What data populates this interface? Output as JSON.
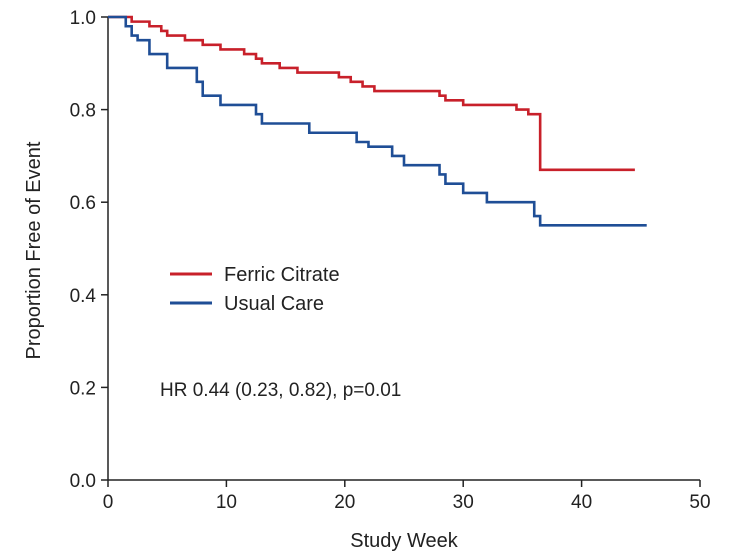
{
  "chart_data": {
    "type": "line",
    "step": true,
    "title": "",
    "xlabel": "Study Week",
    "ylabel": "Proportion Free of Event",
    "xlim": [
      0,
      50
    ],
    "ylim": [
      0.0,
      1.0
    ],
    "xticks": [
      0,
      10,
      20,
      30,
      40,
      50
    ],
    "yticks": [
      "0.0",
      "0.2",
      "0.4",
      "0.6",
      "0.8",
      "1.0"
    ],
    "grid": false,
    "legend_position": "center-left",
    "annotation": "HR 0.44 (0.23, 0.82), p=0.01",
    "series": [
      {
        "name": "Ferric Citrate",
        "color": "#c8202a",
        "points": [
          [
            0,
            1.0
          ],
          [
            2,
            0.99
          ],
          [
            3.5,
            0.98
          ],
          [
            4.5,
            0.97
          ],
          [
            5,
            0.96
          ],
          [
            6.5,
            0.95
          ],
          [
            8,
            0.94
          ],
          [
            9.5,
            0.93
          ],
          [
            11.5,
            0.92
          ],
          [
            12.5,
            0.91
          ],
          [
            13,
            0.9
          ],
          [
            14.5,
            0.89
          ],
          [
            16,
            0.88
          ],
          [
            19.5,
            0.87
          ],
          [
            20.5,
            0.86
          ],
          [
            21.5,
            0.85
          ],
          [
            22.5,
            0.84
          ],
          [
            28,
            0.83
          ],
          [
            28.5,
            0.82
          ],
          [
            30,
            0.81
          ],
          [
            34.5,
            0.8
          ],
          [
            35.5,
            0.79
          ],
          [
            36.5,
            0.67
          ],
          [
            44.5,
            0.67
          ]
        ]
      },
      {
        "name": "Usual Care",
        "color": "#1f4e96",
        "points": [
          [
            0,
            1.0
          ],
          [
            1.5,
            0.98
          ],
          [
            2,
            0.96
          ],
          [
            2.5,
            0.95
          ],
          [
            3.5,
            0.92
          ],
          [
            5,
            0.89
          ],
          [
            7.5,
            0.86
          ],
          [
            8,
            0.83
          ],
          [
            9.5,
            0.81
          ],
          [
            12.5,
            0.79
          ],
          [
            13,
            0.77
          ],
          [
            17,
            0.75
          ],
          [
            21,
            0.73
          ],
          [
            22,
            0.72
          ],
          [
            24,
            0.7
          ],
          [
            25,
            0.68
          ],
          [
            28,
            0.66
          ],
          [
            28.5,
            0.64
          ],
          [
            30,
            0.62
          ],
          [
            32,
            0.6
          ],
          [
            36,
            0.57
          ],
          [
            36.5,
            0.55
          ],
          [
            45.5,
            0.55
          ]
        ]
      }
    ]
  }
}
